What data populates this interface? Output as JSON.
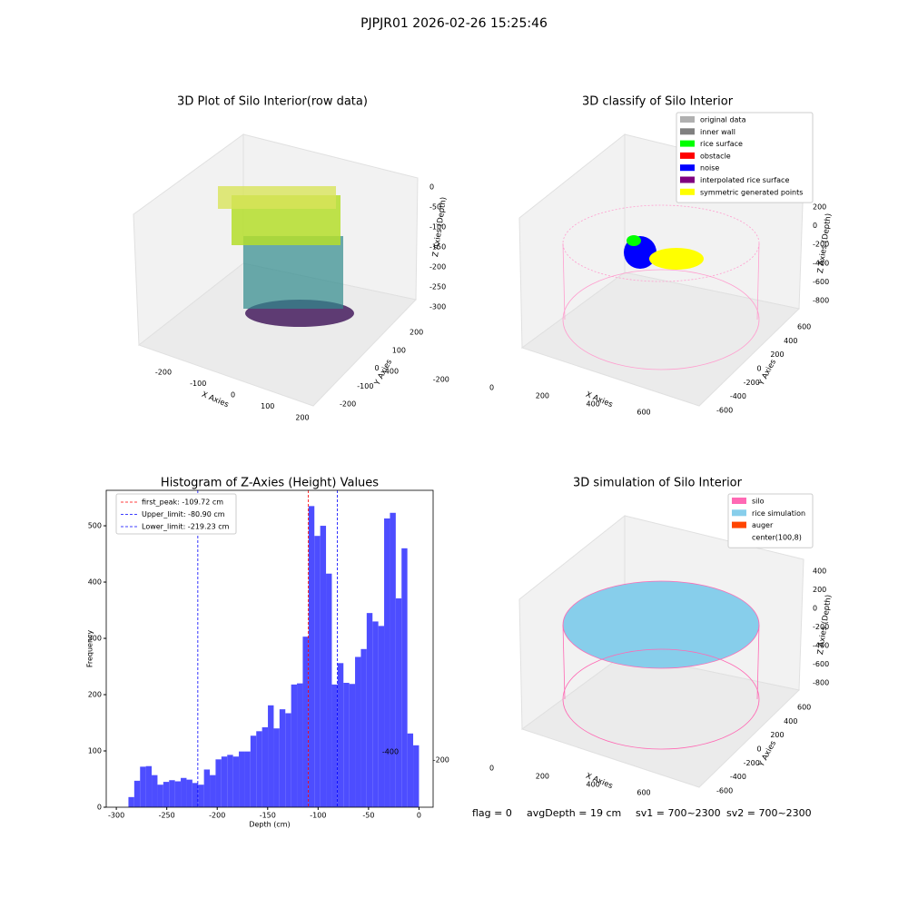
{
  "title": "PJPJR01 2026-02-26 15:25:46",
  "footer": [
    "flag = 0",
    "avgDepth = 19 cm",
    "sv1 = 700~2300",
    "sv2 = 700~2300"
  ],
  "chart_data": [
    {
      "type": "scatter3d",
      "title": "3D Plot of Silo Interior(row data)",
      "xlabel": "X Axies",
      "ylabel": "Y Axies",
      "zlabel": "Z Axies (Depth)",
      "xticks": [
        -200,
        -100,
        0,
        100,
        200
      ],
      "yticks": [
        -200,
        -100,
        0,
        100,
        200
      ],
      "zticks": [
        0,
        -50,
        -100,
        -150,
        -200,
        -250,
        -300
      ]
    },
    {
      "type": "scatter3d",
      "title": "3D classify of Silo Interior",
      "xlabel": "X Axies",
      "ylabel": "Y Axies",
      "zlabel": "Z Axies (Depth)",
      "xticks": [
        -400,
        -200,
        0,
        200,
        400,
        600
      ],
      "yticks": [
        -600,
        -400,
        -200,
        0,
        200,
        400,
        600
      ],
      "zticks": [
        200,
        0,
        -200,
        -400,
        -600,
        -800
      ],
      "legend": "upper right",
      "series": [
        {
          "name": "original data",
          "color": "#b0b0b0"
        },
        {
          "name": "inner wall",
          "color": "#808080"
        },
        {
          "name": "rice surface",
          "color": "#00ff00"
        },
        {
          "name": "obstacle",
          "color": "#ff0000"
        },
        {
          "name": "noise",
          "color": "#0000ff"
        },
        {
          "name": "interpolated rice surface",
          "color": "#800080"
        },
        {
          "name": "symmetric generated points",
          "color": "#ffff00"
        }
      ]
    },
    {
      "type": "histogram",
      "title": "Histogram of Z-Axies (Height) Values",
      "xlabel": "Depth (cm)",
      "ylabel": "Frequency",
      "color": "#4d4dff",
      "bins": [
        -288,
        -282.24,
        -276.48,
        -270.72,
        -264.96,
        -259.2,
        -253.44,
        -247.68,
        -241.92,
        -236.16,
        -230.4,
        -224.64,
        -218.88,
        -213.12,
        -207.36,
        -201.6,
        -195.84,
        -190.08,
        -184.32,
        -178.56,
        -172.8,
        -167.04,
        -161.28,
        -155.52,
        -149.76,
        -144,
        -138.24,
        -132.48,
        -126.72,
        -120.96,
        -115.2,
        -109.44,
        -103.68,
        -97.92,
        -92.16,
        -86.4,
        -80.64,
        -74.88,
        -69.12,
        -63.36,
        -57.6,
        -51.84,
        -46.08,
        -40.32,
        -34.56,
        -28.8,
        -23.04,
        -17.28,
        -11.52,
        -5.76,
        0
      ],
      "values": [
        18,
        47,
        72,
        73,
        57,
        40,
        45,
        48,
        46,
        52,
        49,
        43,
        40,
        67,
        57,
        85,
        90,
        93,
        90,
        99,
        99,
        127,
        135,
        142,
        181,
        140,
        174,
        167,
        218,
        220,
        303,
        535,
        482,
        500,
        415,
        218,
        256,
        221,
        219,
        267,
        281,
        345,
        330,
        322,
        513,
        523,
        371,
        460,
        131,
        110
      ],
      "xlim": [
        -310,
        14
      ],
      "ylim": [
        0,
        563
      ],
      "xticks": [
        -300,
        -250,
        -200,
        -150,
        -100,
        -50,
        0
      ],
      "yticks": [
        0,
        100,
        200,
        300,
        400,
        500
      ],
      "legend": "upper left",
      "vlines": [
        {
          "label": "first_peak: -109.72 cm",
          "value": -109.72,
          "color": "#ff0000"
        },
        {
          "label": "Upper_limit: -80.90 cm",
          "value": -80.9,
          "color": "#0000ff"
        },
        {
          "label": "Lower_limit: -219.23 cm",
          "value": -219.23,
          "color": "#0000ff"
        }
      ]
    },
    {
      "type": "surface3d",
      "title": "3D simulation of Silo Interior",
      "xlabel": "X Axies",
      "ylabel": "Y Axies",
      "zlabel": "Z Axies (Depth)",
      "xticks": [
        -400,
        -200,
        0,
        200,
        400,
        600
      ],
      "yticks": [
        -600,
        -400,
        -200,
        0,
        200,
        400,
        600
      ],
      "zticks": [
        400,
        200,
        0,
        -200,
        -400,
        -600,
        -800
      ],
      "legend": "upper right",
      "series": [
        {
          "name": "silo",
          "color": "#ff69b4"
        },
        {
          "name": "rice simulation",
          "color": "#87ceeb"
        },
        {
          "name": "auger",
          "color": "#ff4500"
        },
        {
          "name": "center(100,8)",
          "color": "#ffffff"
        }
      ]
    }
  ]
}
